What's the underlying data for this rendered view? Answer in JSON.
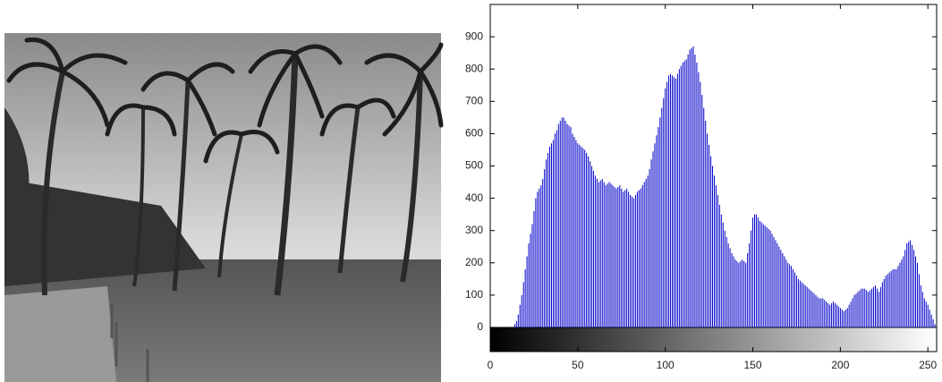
{
  "chart_data": {
    "type": "histogram",
    "color": "#0000c8",
    "colorbar": true,
    "xlim": [
      0,
      255
    ],
    "xticks": [
      0,
      50,
      100,
      150,
      200,
      250
    ],
    "ylim": [
      0,
      1000
    ],
    "yticks": [
      0,
      100,
      200,
      300,
      400,
      500,
      600,
      700,
      800,
      900
    ],
    "values": [
      0,
      0,
      0,
      0,
      0,
      0,
      0,
      0,
      0,
      0,
      0,
      0,
      0,
      0,
      10,
      20,
      40,
      70,
      100,
      140,
      180,
      220,
      260,
      290,
      320,
      360,
      400,
      420,
      430,
      440,
      460,
      490,
      520,
      540,
      560,
      570,
      580,
      600,
      610,
      630,
      640,
      650,
      650,
      640,
      630,
      625,
      620,
      600,
      590,
      580,
      570,
      565,
      560,
      555,
      550,
      540,
      530,
      515,
      500,
      485,
      470,
      460,
      450,
      455,
      460,
      450,
      440,
      445,
      450,
      445,
      440,
      435,
      430,
      435,
      440,
      430,
      420,
      425,
      430,
      420,
      410,
      405,
      400,
      410,
      420,
      425,
      430,
      440,
      450,
      460,
      470,
      490,
      520,
      545,
      570,
      595,
      620,
      650,
      680,
      710,
      740,
      760,
      780,
      785,
      780,
      775,
      770,
      785,
      800,
      810,
      820,
      825,
      830,
      845,
      860,
      865,
      870,
      845,
      820,
      790,
      760,
      720,
      680,
      640,
      600,
      565,
      530,
      500,
      470,
      440,
      410,
      380,
      350,
      325,
      300,
      280,
      260,
      245,
      230,
      220,
      210,
      205,
      200,
      205,
      210,
      205,
      200,
      230,
      260,
      300,
      340,
      350,
      350,
      340,
      330,
      325,
      320,
      315,
      310,
      305,
      300,
      290,
      280,
      270,
      260,
      250,
      240,
      230,
      220,
      210,
      200,
      195,
      190,
      180,
      170,
      160,
      150,
      145,
      140,
      135,
      130,
      125,
      120,
      115,
      110,
      105,
      100,
      95,
      90,
      90,
      90,
      85,
      80,
      75,
      70,
      75,
      80,
      75,
      70,
      65,
      60,
      55,
      50,
      55,
      60,
      70,
      80,
      90,
      100,
      105,
      110,
      115,
      120,
      120,
      120,
      115,
      110,
      115,
      120,
      125,
      130,
      120,
      110,
      125,
      140,
      150,
      160,
      165,
      170,
      175,
      180,
      180,
      180,
      190,
      200,
      210,
      220,
      240,
      260,
      265,
      270,
      255,
      240,
      220,
      200,
      165,
      130,
      110,
      90,
      80,
      70,
      55,
      40,
      25,
      10,
      0
    ]
  }
}
